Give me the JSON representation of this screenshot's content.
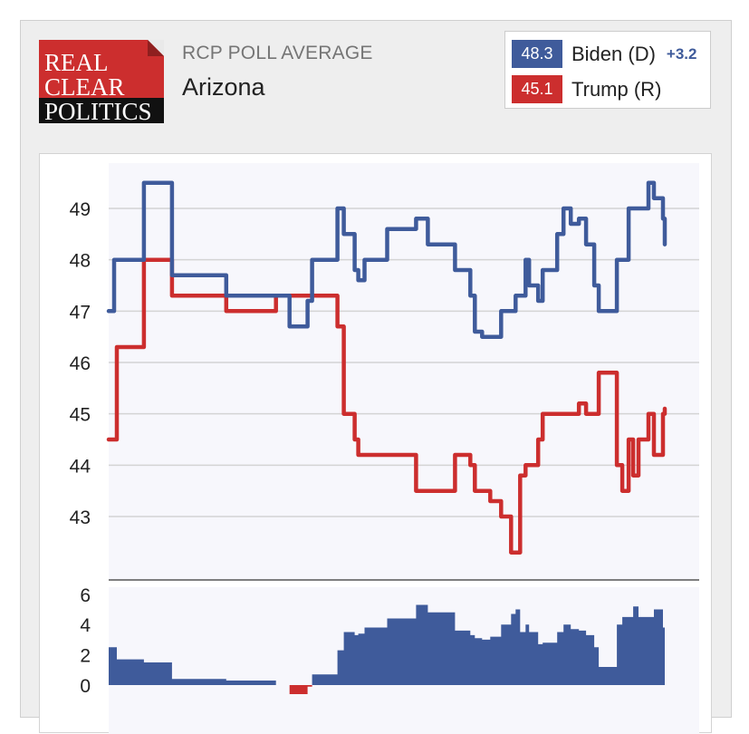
{
  "header": {
    "logo_lines": [
      "REAL",
      "CLEAR",
      "POLITICS"
    ],
    "label": "RCP POLL AVERAGE",
    "title": "Arizona"
  },
  "legend": [
    {
      "value": "48.3",
      "name": "Biden (D)",
      "color": "#3f5b9b",
      "spread": "+3.2"
    },
    {
      "value": "45.1",
      "name": "Trump (R)",
      "color": "#cc2e2e"
    }
  ],
  "colors": {
    "dem": "#3f5b9b",
    "rep": "#cc2e2e",
    "grid": "#d4d4d4",
    "plot_bg": "#f7f7fc"
  },
  "chart_data": [
    {
      "type": "line",
      "title": "",
      "xlabel": "",
      "ylabel": "",
      "ylim": [
        42,
        49.9
      ],
      "yticks": [
        43,
        44,
        45,
        46,
        47,
        48,
        49
      ],
      "grid": true,
      "x": [
        0,
        6,
        9,
        37,
        39,
        49,
        70,
        113,
        130,
        159,
        170,
        185,
        195,
        200,
        214,
        220,
        225,
        248,
        253,
        260,
        272,
        276,
        283,
        286,
        290,
        301,
        308,
        314,
        320,
        331,
        340,
        347,
        353,
        358,
        369,
        383,
        400,
        405,
        413,
        422,
        434,
        445,
        450,
        455,
        461,
        465,
        469,
        475,
        480,
        485,
        492,
        496,
        503,
        511,
        520,
        528,
        537,
        542,
        548,
        555,
        562,
        565,
        568,
        575,
        580,
        586,
        597,
        603,
        608,
        613,
        615
      ],
      "series": [
        {
          "name": "Biden (D)",
          "values": [
            47.0,
            48.0,
            48.0,
            48.0,
            49.5,
            49.5,
            47.7,
            47.7,
            47.3,
            47.3,
            47.3,
            47.3,
            47.3,
            46.7,
            46.7,
            47.2,
            48.0,
            48.0,
            49.0,
            48.5,
            47.8,
            47.6,
            48.0,
            48.0,
            48.0,
            48.0,
            48.6,
            48.6,
            48.6,
            48.6,
            48.8,
            48.8,
            48.3,
            48.3,
            48.3,
            47.8,
            47.3,
            46.6,
            46.5,
            46.5,
            47.0,
            47.0,
            47.3,
            47.3,
            48.0,
            47.5,
            47.5,
            47.2,
            47.8,
            47.8,
            47.8,
            48.5,
            49.0,
            48.7,
            48.8,
            48.3,
            47.5,
            47.0,
            47.0,
            47.0,
            48.0,
            48.0,
            48.0,
            49.0,
            49.0,
            49.0,
            49.5,
            49.2,
            49.2,
            48.8,
            48.3
          ]
        },
        {
          "name": "Trump (R)",
          "values": [
            44.5,
            44.5,
            46.3,
            46.3,
            48.0,
            48.0,
            47.3,
            47.3,
            47.0,
            47.0,
            47.0,
            47.3,
            47.3,
            47.3,
            47.3,
            47.3,
            47.3,
            47.3,
            46.7,
            45.0,
            44.5,
            44.2,
            44.2,
            44.2,
            44.2,
            44.2,
            44.2,
            44.2,
            44.2,
            44.2,
            43.5,
            43.5,
            43.5,
            43.5,
            43.5,
            44.2,
            44.0,
            43.5,
            43.5,
            43.3,
            43.0,
            42.3,
            42.3,
            43.8,
            44.0,
            44.0,
            44.0,
            44.5,
            45.0,
            45.0,
            45.0,
            45.0,
            45.0,
            45.0,
            45.2,
            45.0,
            45.0,
            45.8,
            45.8,
            45.8,
            44.0,
            44.0,
            43.5,
            44.5,
            43.8,
            44.5,
            45.0,
            44.2,
            44.2,
            45.0,
            45.1
          ]
        }
      ]
    },
    {
      "type": "area",
      "title": "",
      "xlabel": "",
      "ylabel": "",
      "ylim": [
        0,
        7
      ],
      "yticks": [
        0,
        2,
        4,
        6
      ],
      "grid": false,
      "series": [
        {
          "name": "Biden (D) - Trump (R)",
          "values": [
            2.5,
            2.5,
            1.7,
            1.7,
            1.5,
            1.5,
            0.4,
            0.4,
            0.3,
            0.3,
            0.3,
            0.0,
            0.0,
            -0.6,
            -0.6,
            -0.1,
            0.7,
            0.7,
            2.3,
            3.5,
            3.3,
            3.4,
            3.8,
            3.8,
            3.8,
            3.8,
            4.4,
            4.4,
            4.4,
            4.4,
            5.3,
            5.3,
            4.8,
            4.8,
            4.8,
            3.6,
            3.3,
            3.1,
            3.0,
            3.2,
            4.0,
            4.7,
            5.0,
            3.5,
            4.0,
            3.5,
            3.5,
            2.7,
            2.8,
            2.8,
            2.8,
            3.5,
            4.0,
            3.7,
            3.6,
            3.3,
            2.5,
            1.2,
            1.2,
            1.2,
            4.0,
            4.0,
            4.5,
            4.5,
            5.2,
            4.5,
            4.5,
            5.0,
            5.0,
            3.8,
            3.2
          ]
        }
      ]
    }
  ]
}
